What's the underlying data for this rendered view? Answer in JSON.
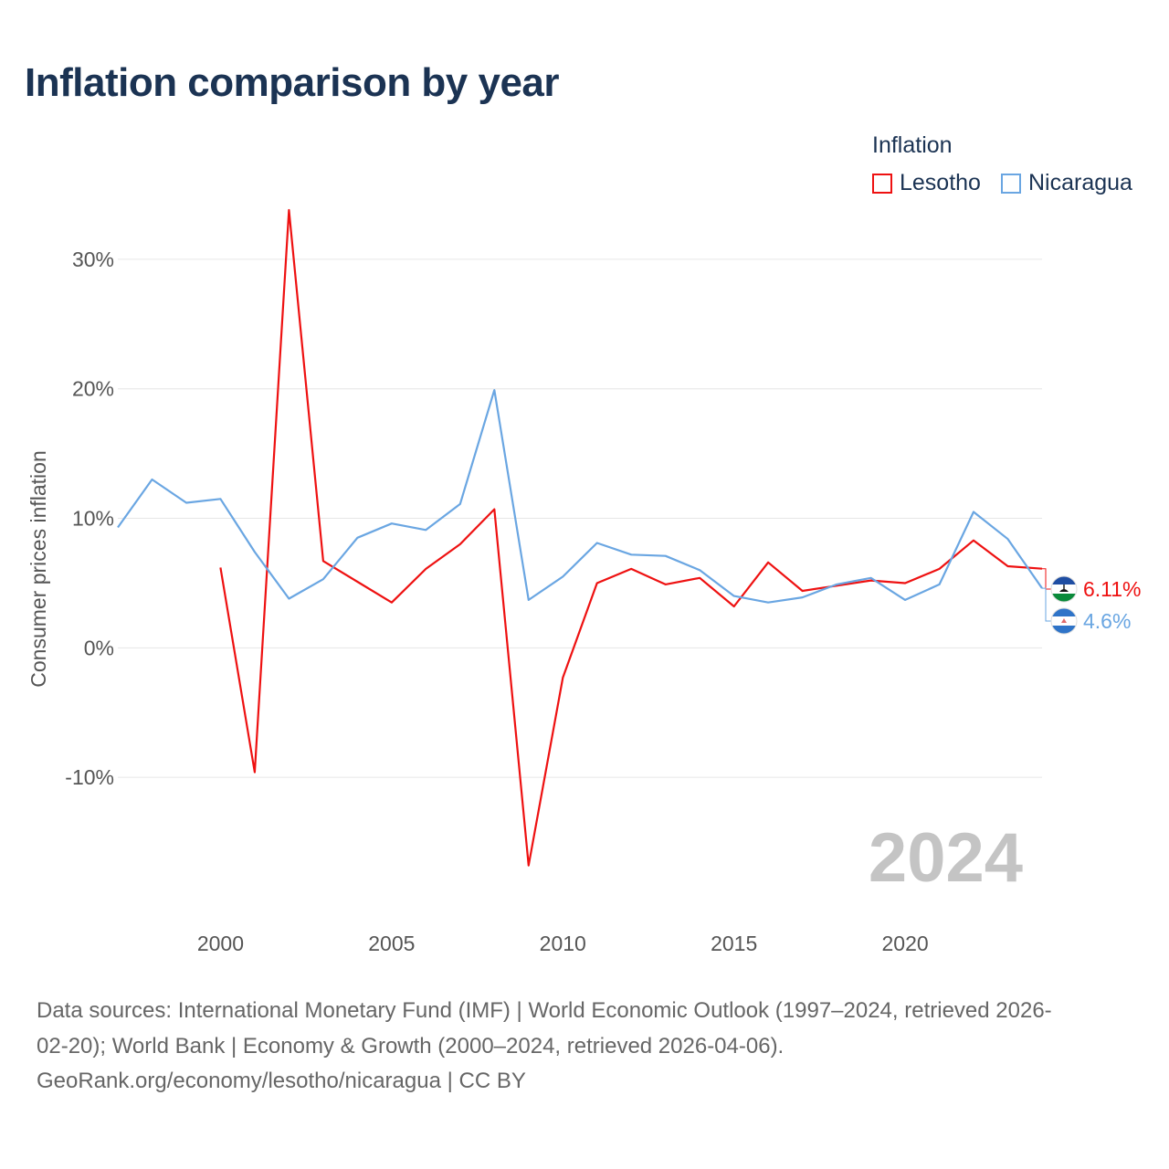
{
  "title": "Inflation comparison by year",
  "legend": {
    "title": "Inflation",
    "items": [
      {
        "label": "Lesotho",
        "color": "#ee1111"
      },
      {
        "label": "Nicaragua",
        "color": "#6aa6e2"
      }
    ]
  },
  "chart_data": {
    "type": "line",
    "title": "Inflation comparison by year",
    "xlabel": "",
    "ylabel": "Consumer prices inflation",
    "xlim": [
      1997,
      2024
    ],
    "ylim": [
      -20,
      35
    ],
    "x_ticks": [
      2000,
      2005,
      2010,
      2015,
      2020
    ],
    "y_ticks": [
      {
        "value": 30,
        "label": "30%"
      },
      {
        "value": 20,
        "label": "20%"
      },
      {
        "value": 10,
        "label": "10%"
      },
      {
        "value": 0,
        "label": "0%"
      },
      {
        "value": -10,
        "label": "-10%"
      }
    ],
    "grid": true,
    "legend_position": "top-right",
    "watermark_year": "2024",
    "series": [
      {
        "name": "Lesotho",
        "color": "#ee1111",
        "end_label": "6.11%",
        "flag": "lesotho-flag",
        "points": [
          [
            2000,
            6.2
          ],
          [
            2001,
            -9.6
          ],
          [
            2002,
            33.8
          ],
          [
            2003,
            6.7
          ],
          [
            2004,
            5.1
          ],
          [
            2005,
            3.5
          ],
          [
            2006,
            6.1
          ],
          [
            2007,
            8.0
          ],
          [
            2008,
            10.7
          ],
          [
            2009,
            -16.8
          ],
          [
            2010,
            -2.3
          ],
          [
            2011,
            5.0
          ],
          [
            2012,
            6.1
          ],
          [
            2013,
            4.9
          ],
          [
            2014,
            5.4
          ],
          [
            2015,
            3.2
          ],
          [
            2016,
            6.6
          ],
          [
            2017,
            4.4
          ],
          [
            2018,
            4.8
          ],
          [
            2019,
            5.2
          ],
          [
            2020,
            5.0
          ],
          [
            2021,
            6.1
          ],
          [
            2022,
            8.3
          ],
          [
            2023,
            6.3
          ],
          [
            2024,
            6.11
          ]
        ]
      },
      {
        "name": "Nicaragua",
        "color": "#6aa6e2",
        "end_label": "4.6%",
        "flag": "nicaragua-flag",
        "points": [
          [
            1997,
            9.3
          ],
          [
            1998,
            13.0
          ],
          [
            1999,
            11.2
          ],
          [
            2000,
            11.5
          ],
          [
            2001,
            7.4
          ],
          [
            2002,
            3.8
          ],
          [
            2003,
            5.3
          ],
          [
            2004,
            8.5
          ],
          [
            2005,
            9.6
          ],
          [
            2006,
            9.1
          ],
          [
            2007,
            11.1
          ],
          [
            2008,
            19.9
          ],
          [
            2009,
            3.7
          ],
          [
            2010,
            5.5
          ],
          [
            2011,
            8.1
          ],
          [
            2012,
            7.2
          ],
          [
            2013,
            7.1
          ],
          [
            2014,
            6.0
          ],
          [
            2015,
            4.0
          ],
          [
            2016,
            3.5
          ],
          [
            2017,
            3.9
          ],
          [
            2018,
            4.9
          ],
          [
            2019,
            5.4
          ],
          [
            2020,
            3.7
          ],
          [
            2021,
            4.9
          ],
          [
            2022,
            10.5
          ],
          [
            2023,
            8.4
          ],
          [
            2024,
            4.6
          ]
        ]
      }
    ]
  },
  "source": {
    "line1": "Data sources: International Monetary Fund (IMF) | World Economic Outlook (1997–2024, retrieved 2026-",
    "line2": "02-20); World Bank | Economy & Growth (2000–2024, retrieved 2026-04-06).",
    "line3": "GeoRank.org/economy/lesotho/nicaragua | CC BY"
  }
}
